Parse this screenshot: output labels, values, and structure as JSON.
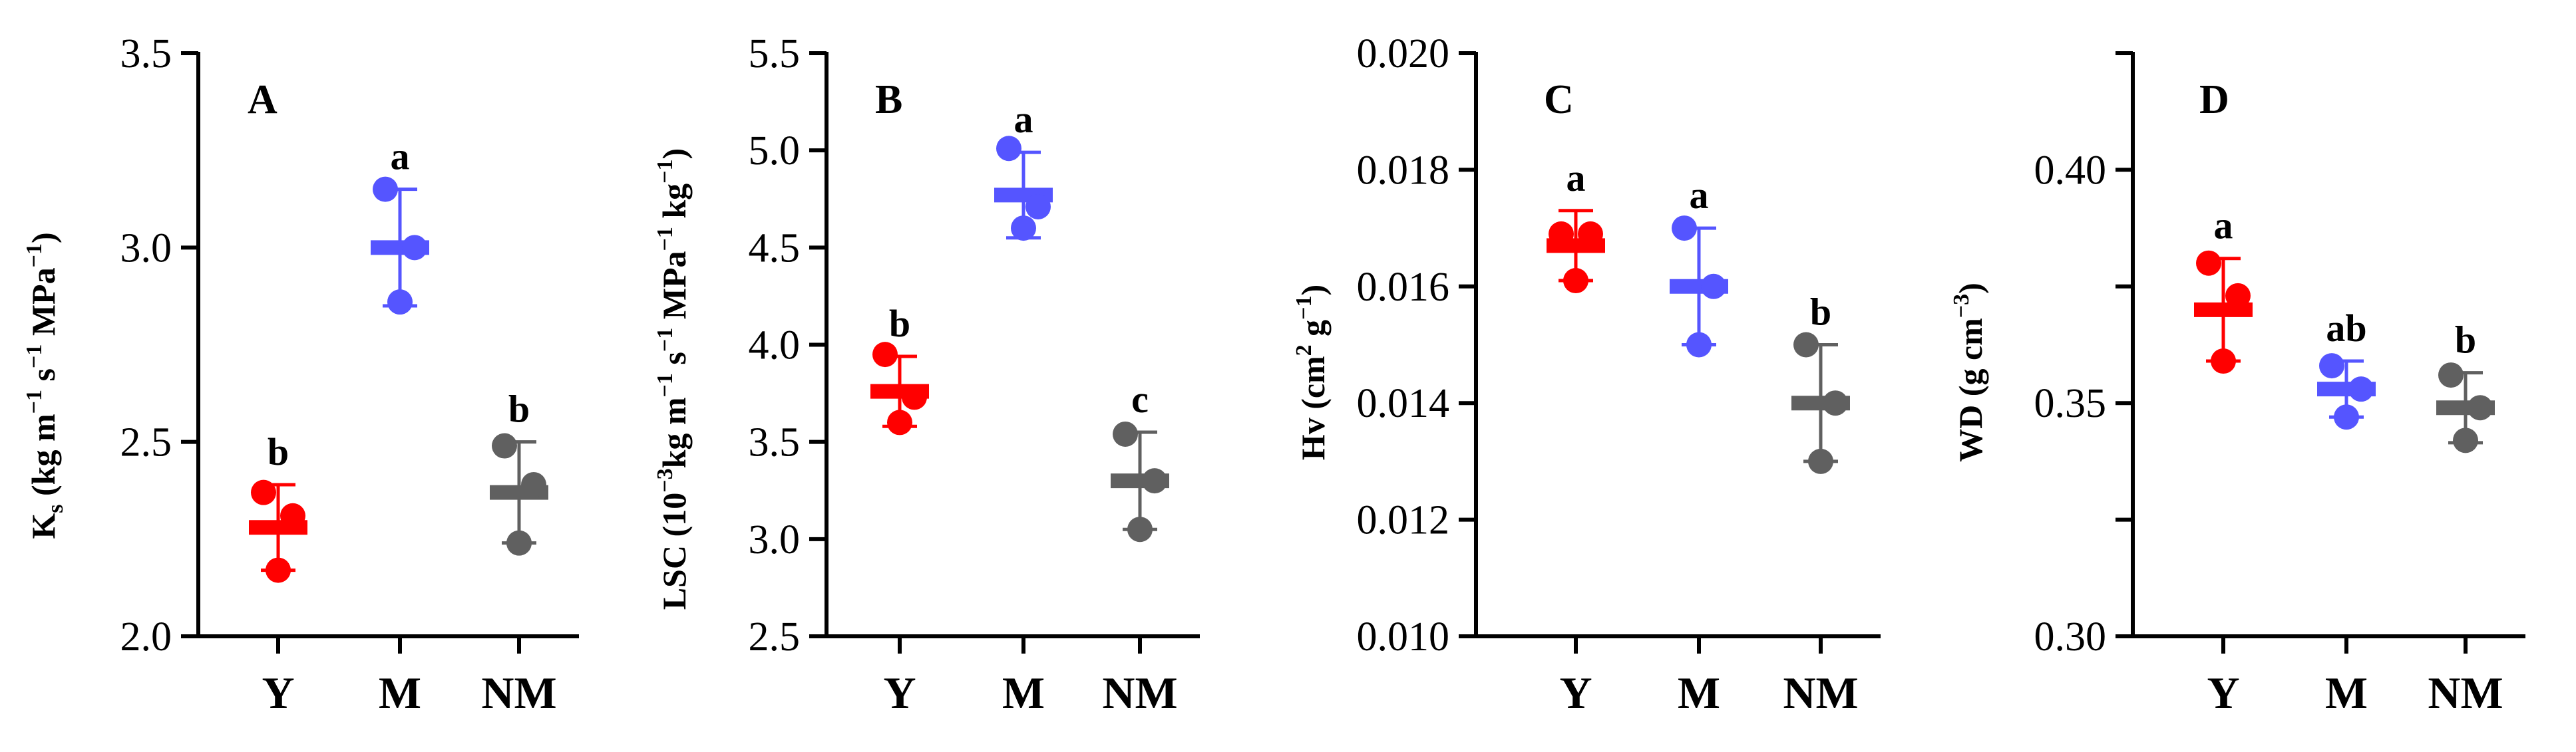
{
  "colors": {
    "Y": "#ff0000",
    "M": "#5555ff",
    "NM": "#606060",
    "axis": "#000000"
  },
  "chart_data": [
    {
      "type": "scatter",
      "panel": "A",
      "ylabel": {
        "main": "K",
        "sub": "s",
        "rest": " (kg m",
        "unit_sups": [
          "−1",
          "−1",
          "−1"
        ],
        "parts": [
          " (kg m",
          " s",
          " MPa",
          ")"
        ]
      },
      "ylim": [
        2.0,
        3.5
      ],
      "yticks": [
        2.0,
        2.5,
        3.0,
        3.5
      ],
      "tick_labels": [
        "2.0",
        "2.5",
        "3.0",
        "3.5"
      ],
      "categories": [
        "Y",
        "M",
        "NM"
      ],
      "series": [
        {
          "category": "Y",
          "mean": 2.28,
          "sd": 0.11,
          "points": [
            2.37,
            2.31,
            2.17
          ],
          "letter": "b"
        },
        {
          "category": "M",
          "mean": 3.0,
          "sd": 0.15,
          "points": [
            3.15,
            3.0,
            2.86
          ],
          "letter": "a"
        },
        {
          "category": "NM",
          "mean": 2.37,
          "sd": 0.13,
          "points": [
            2.49,
            2.39,
            2.24
          ],
          "letter": "b"
        }
      ]
    },
    {
      "type": "scatter",
      "panel": "B",
      "ylabel": {
        "parts": [
          "LSC (10",
          "kg m",
          " s",
          " MPa",
          " kg",
          ")"
        ],
        "sups": [
          "−3",
          "−1",
          "−1",
          "−1",
          "−1"
        ]
      },
      "ylim": [
        2.5,
        5.5
      ],
      "yticks": [
        2.5,
        3.0,
        3.5,
        4.0,
        4.5,
        5.0,
        5.5
      ],
      "tick_labels": [
        "2.5",
        "3.0",
        "3.5",
        "4.0",
        "4.5",
        "5.0",
        "5.5"
      ],
      "categories": [
        "Y",
        "M",
        "NM"
      ],
      "series": [
        {
          "category": "Y",
          "mean": 3.76,
          "sd": 0.18,
          "points": [
            3.95,
            3.73,
            3.6
          ],
          "letter": "b"
        },
        {
          "category": "M",
          "mean": 4.77,
          "sd": 0.22,
          "points": [
            5.01,
            4.71,
            4.6
          ],
          "letter": "a"
        },
        {
          "category": "NM",
          "mean": 3.3,
          "sd": 0.25,
          "points": [
            3.54,
            3.3,
            3.05
          ],
          "letter": "c"
        }
      ]
    },
    {
      "type": "scatter",
      "panel": "C",
      "ylabel": {
        "parts": [
          "Hv (cm",
          " g",
          ")"
        ],
        "sups": [
          "2",
          "−1"
        ]
      },
      "ylim": [
        0.01,
        0.02
      ],
      "yticks": [
        0.01,
        0.012,
        0.014,
        0.016,
        0.018,
        0.02
      ],
      "tick_labels": [
        "0.010",
        "0.012",
        "0.014",
        "0.016",
        "0.018",
        "0.020"
      ],
      "categories": [
        "Y",
        "M",
        "NM"
      ],
      "series": [
        {
          "category": "Y",
          "mean": 0.0167,
          "sd": 0.0006,
          "points": [
            0.0169,
            0.0169,
            0.0161
          ],
          "letter": "a"
        },
        {
          "category": "M",
          "mean": 0.016,
          "sd": 0.001,
          "points": [
            0.017,
            0.016,
            0.015
          ],
          "letter": "a"
        },
        {
          "category": "NM",
          "mean": 0.014,
          "sd": 0.001,
          "points": [
            0.015,
            0.014,
            0.013
          ],
          "letter": "b"
        }
      ]
    },
    {
      "type": "scatter",
      "panel": "D",
      "ylabel": {
        "parts": [
          "WD (g cm",
          ")"
        ],
        "sups": [
          "−3"
        ]
      },
      "ylim": [
        0.3,
        0.425
      ],
      "yticks": [
        0.3,
        0.35,
        0.4
      ],
      "minor_yticks": [
        0.325,
        0.375,
        0.425
      ],
      "tick_labels": [
        "0.30",
        "0.35",
        "0.40"
      ],
      "categories": [
        "Y",
        "M",
        "NM"
      ],
      "series": [
        {
          "category": "Y",
          "mean": 0.37,
          "sd": 0.011,
          "points": [
            0.38,
            0.373,
            0.359
          ],
          "letter": "a"
        },
        {
          "category": "M",
          "mean": 0.353,
          "sd": 0.006,
          "points": [
            0.358,
            0.353,
            0.347
          ],
          "letter": "ab"
        },
        {
          "category": "NM",
          "mean": 0.349,
          "sd": 0.0075,
          "points": [
            0.356,
            0.349,
            0.342
          ],
          "letter": "b"
        }
      ]
    }
  ]
}
